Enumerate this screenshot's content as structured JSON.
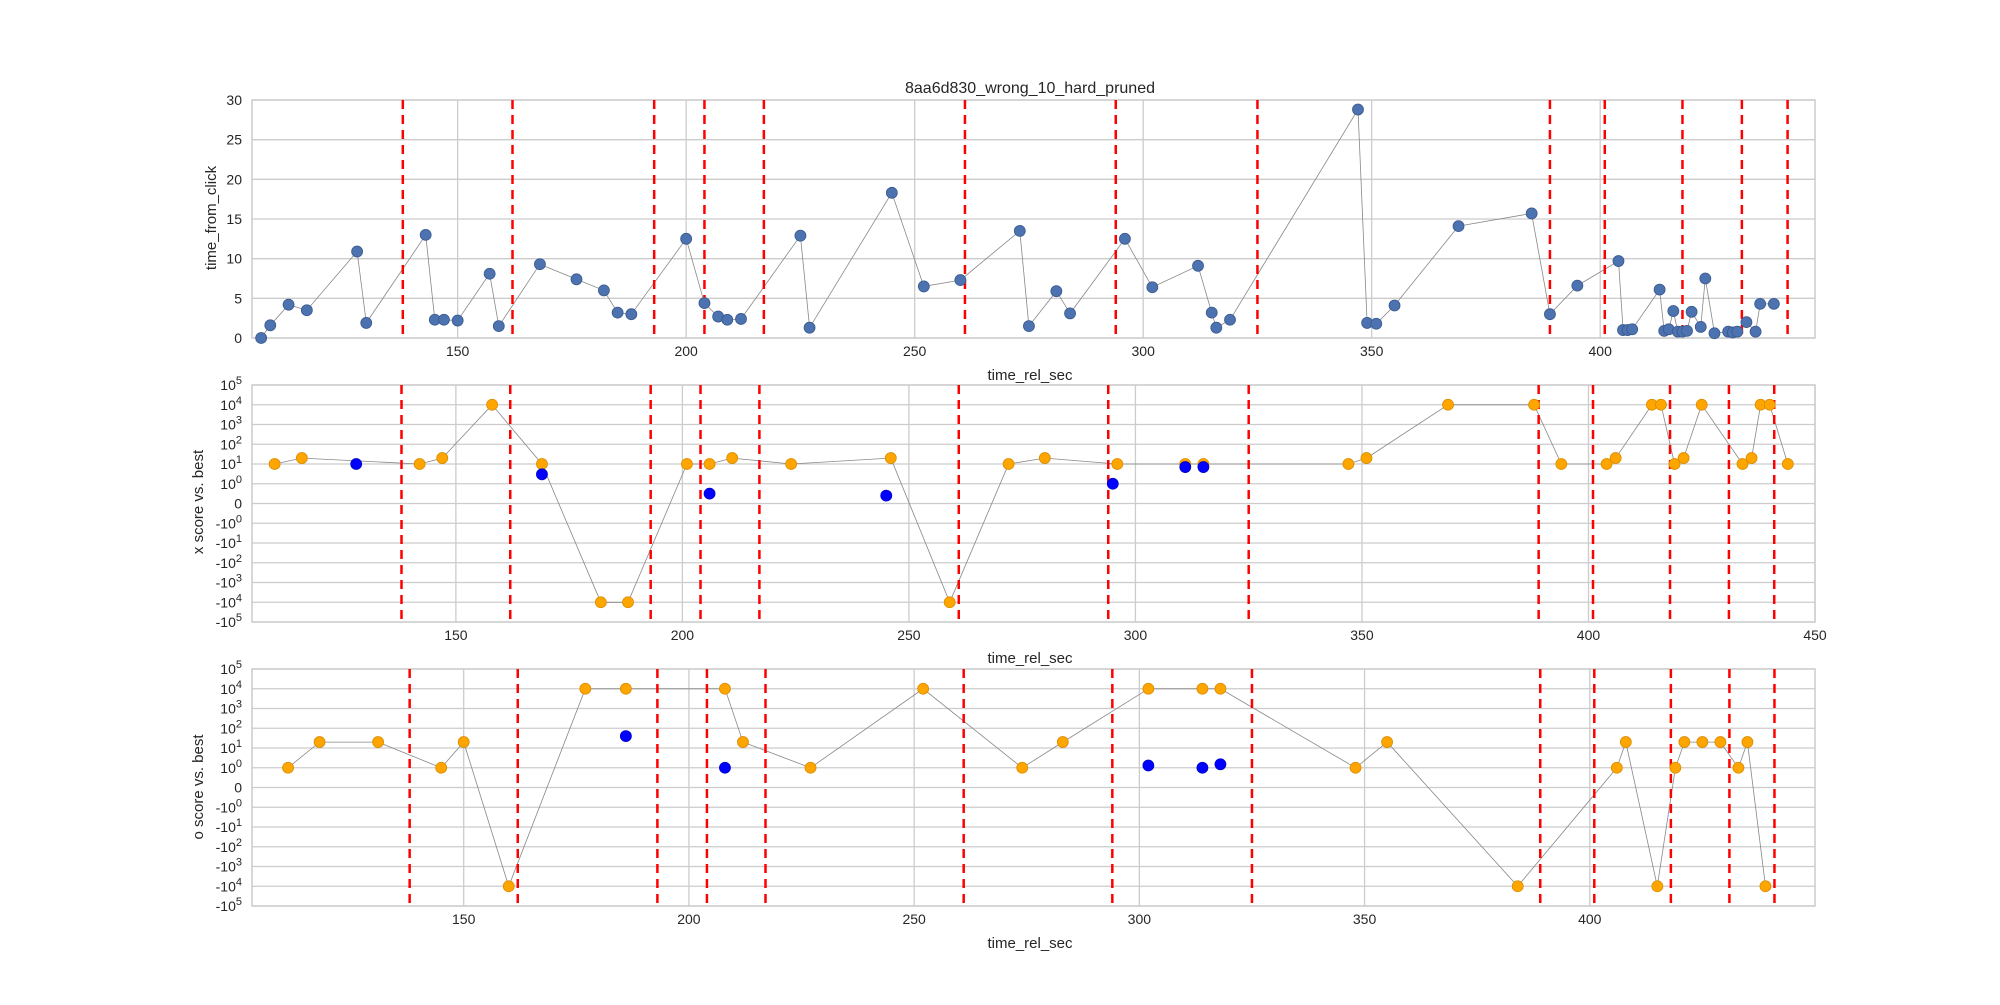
{
  "chart_data": [
    {
      "type": "scatter",
      "title": "8aa6d830_wrong_10_hard_pruned",
      "xlabel": "time_rel_sec",
      "ylabel": "time_from_click",
      "xlim": [
        105,
        447
      ],
      "ylim": [
        0,
        30
      ],
      "yscale": "linear",
      "xticks": [
        150,
        200,
        250,
        300,
        350,
        400
      ],
      "yticks": [
        0,
        5,
        10,
        15,
        20,
        25,
        30
      ],
      "grid": true,
      "vlines": [
        138,
        162,
        193,
        204,
        217,
        261,
        294,
        325,
        389,
        401,
        418,
        431,
        441
      ],
      "series": [
        {
          "color": "#4c72b0",
          "x": [
            107,
            109,
            113,
            117,
            128,
            130,
            143,
            145,
            147,
            150,
            157,
            159,
            168,
            176,
            182,
            185,
            188,
            200,
            204,
            207,
            209,
            212,
            225,
            227,
            245,
            252,
            260,
            273,
            275,
            281,
            284,
            296,
            302,
            312,
            315,
            316,
            319,
            347,
            349,
            351,
            355,
            369,
            385,
            389,
            395,
            404,
            405,
            406,
            407,
            413,
            414,
            415,
            416,
            417,
            418,
            419,
            420,
            422,
            423,
            425,
            428,
            429,
            430,
            432,
            434,
            435,
            438
          ],
          "y": [
            0.0,
            1.6,
            4.2,
            3.5,
            10.9,
            1.9,
            13.0,
            2.3,
            2.3,
            2.2,
            8.1,
            1.5,
            9.3,
            7.4,
            6.0,
            3.2,
            3.0,
            12.5,
            4.4,
            2.7,
            2.3,
            2.4,
            12.9,
            1.3,
            18.3,
            6.5,
            7.3,
            13.5,
            1.5,
            5.9,
            3.1,
            12.5,
            6.4,
            9.1,
            3.2,
            1.3,
            2.3,
            28.8,
            1.9,
            1.8,
            4.1,
            14.1,
            15.7,
            3.0,
            6.6,
            9.7,
            1.0,
            1.0,
            1.1,
            6.1,
            0.9,
            1.1,
            3.4,
            0.8,
            0.8,
            0.9,
            3.3,
            1.4,
            7.5,
            0.6,
            0.8,
            0.7,
            0.8,
            2.0,
            0.8,
            4.3,
            4.3
          ]
        }
      ]
    },
    {
      "type": "scatter",
      "title": "",
      "xlabel": "time_rel_sec",
      "ylabel": "x score vs. best",
      "xlim": [
        105,
        450
      ],
      "ylim": [
        -100000,
        100000
      ],
      "yscale": "symlog",
      "xticks": [
        150,
        200,
        250,
        300,
        350,
        400,
        450
      ],
      "ytick_labels": [
        "-10^5",
        "-10^4",
        "-10^3",
        "-10^2",
        "-10^1",
        "-10^0",
        "0",
        "10^0",
        "10^1",
        "10^2",
        "10^3",
        "10^4",
        "10^5"
      ],
      "grid": true,
      "vlines": [
        138,
        162,
        193,
        204,
        217,
        261,
        294,
        325,
        389,
        401,
        418,
        431,
        441
      ],
      "series": [
        {
          "color": "#ffa500",
          "x": [
            110,
            116,
            142,
            147,
            158,
            169,
            182,
            188,
            201,
            206,
            211,
            224,
            246,
            259,
            272,
            280,
            296,
            311,
            315,
            347,
            351,
            369,
            388,
            394,
            404,
            406,
            414,
            416,
            419,
            421,
            425,
            434,
            436,
            438,
            440,
            444
          ],
          "y": [
            10,
            20,
            10,
            20,
            10000,
            10,
            -10000,
            -10000,
            10,
            10,
            20,
            10,
            20,
            -10000,
            10,
            20,
            10,
            10,
            10,
            10,
            20,
            10000,
            10000,
            10,
            10,
            20,
            10000,
            10000,
            10,
            20,
            10000,
            10,
            20,
            10000,
            10000,
            10
          ]
        },
        {
          "color": "#0000ff",
          "x": [
            128,
            169,
            206,
            245,
            295,
            311,
            315
          ],
          "y": [
            10,
            3,
            0.5,
            0.4,
            1,
            7,
            7
          ]
        }
      ]
    },
    {
      "type": "scatter",
      "title": "",
      "xlabel": "time_rel_sec",
      "ylabel": "o score vs. best",
      "xlim": [
        103,
        450
      ],
      "ylim": [
        -100000,
        100000
      ],
      "yscale": "symlog",
      "xticks": [
        150,
        200,
        250,
        300,
        350,
        400
      ],
      "ytick_labels": [
        "-10^5",
        "-10^4",
        "-10^3",
        "-10^2",
        "-10^1",
        "-10^0",
        "0",
        "10^0",
        "10^1",
        "10^2",
        "10^3",
        "10^4",
        "10^5"
      ],
      "grid": true,
      "vlines": [
        138,
        162,
        193,
        204,
        217,
        261,
        294,
        325,
        389,
        401,
        418,
        431,
        441
      ],
      "series": [
        {
          "color": "#ffa500",
          "x": [
            111,
            118,
            131,
            145,
            150,
            160,
            177,
            186,
            208,
            212,
            227,
            252,
            274,
            283,
            302,
            314,
            318,
            348,
            355,
            384,
            406,
            408,
            415,
            419,
            421,
            425,
            429,
            433,
            435,
            439
          ],
          "y": [
            1,
            20,
            20,
            1,
            20,
            -10000,
            10000,
            10000,
            10000,
            20,
            1,
            10000,
            1,
            20,
            10000,
            10000,
            10000,
            1,
            20,
            -10000,
            1,
            20,
            -10000,
            1,
            20,
            20,
            20,
            1,
            20,
            -10000
          ]
        },
        {
          "color": "#0000ff",
          "x": [
            186,
            208,
            302,
            314,
            318
          ],
          "y": [
            40,
            1,
            1.3,
            1,
            1.5
          ]
        }
      ]
    }
  ]
}
